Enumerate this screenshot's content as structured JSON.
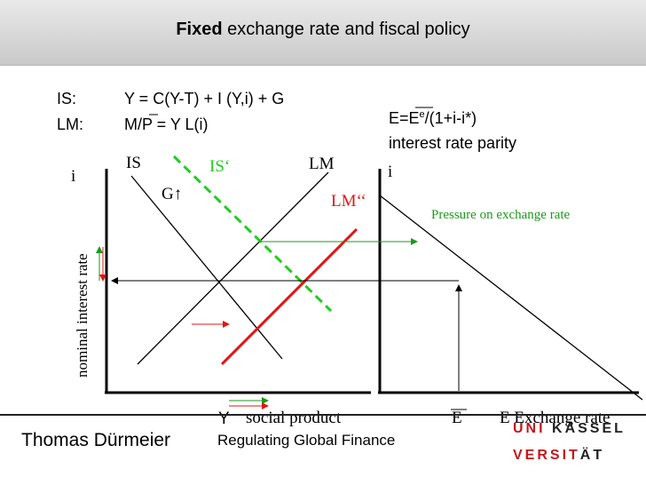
{
  "header": {
    "title_bold": "Fixed",
    "title_rest": " exchange rate and fiscal policy"
  },
  "equations": {
    "is_label": "IS:",
    "is_formula": "Y = C(Y-T) + I (Y,i) + G",
    "lm_label": "LM:",
    "lm_formula": "M/P = Y L(i)",
    "parity_formula_a": "E=E",
    "parity_formula_sup": "e",
    "parity_formula_b": "/(1+i-i*)",
    "parity_caption": "interest rate parity"
  },
  "diagram": {
    "left_axis_y": "i",
    "left_axis_x": "Y",
    "left_axis_x_caption": "social product",
    "y_axis_caption": "nominal interest rate",
    "curve_is": "IS",
    "curve_is_shift": "IS‘",
    "curve_lm": "LM",
    "curve_lm_shift": "LM‘‘",
    "government": "G",
    "up_arrow": "↑",
    "right_axis_y": "i",
    "right_axis_x_symbol": "E",
    "right_axis_x_caption": "E Exchange rate",
    "pressure_note": "Pressure on exchange rate"
  },
  "colors": {
    "is_shift": "#22cc22",
    "lm_shift": "#e11515",
    "pressure": "#1a9a1a",
    "logo_red": "#c4161c"
  },
  "footer": {
    "author": "Thomas Dürmeier",
    "course": "Regulating Global Finance",
    "logo_line1_red": "UNI",
    "logo_line1_dark": "KASSEL",
    "logo_line2_red": "VERSIT",
    "logo_line2_dark": "ÄT"
  }
}
